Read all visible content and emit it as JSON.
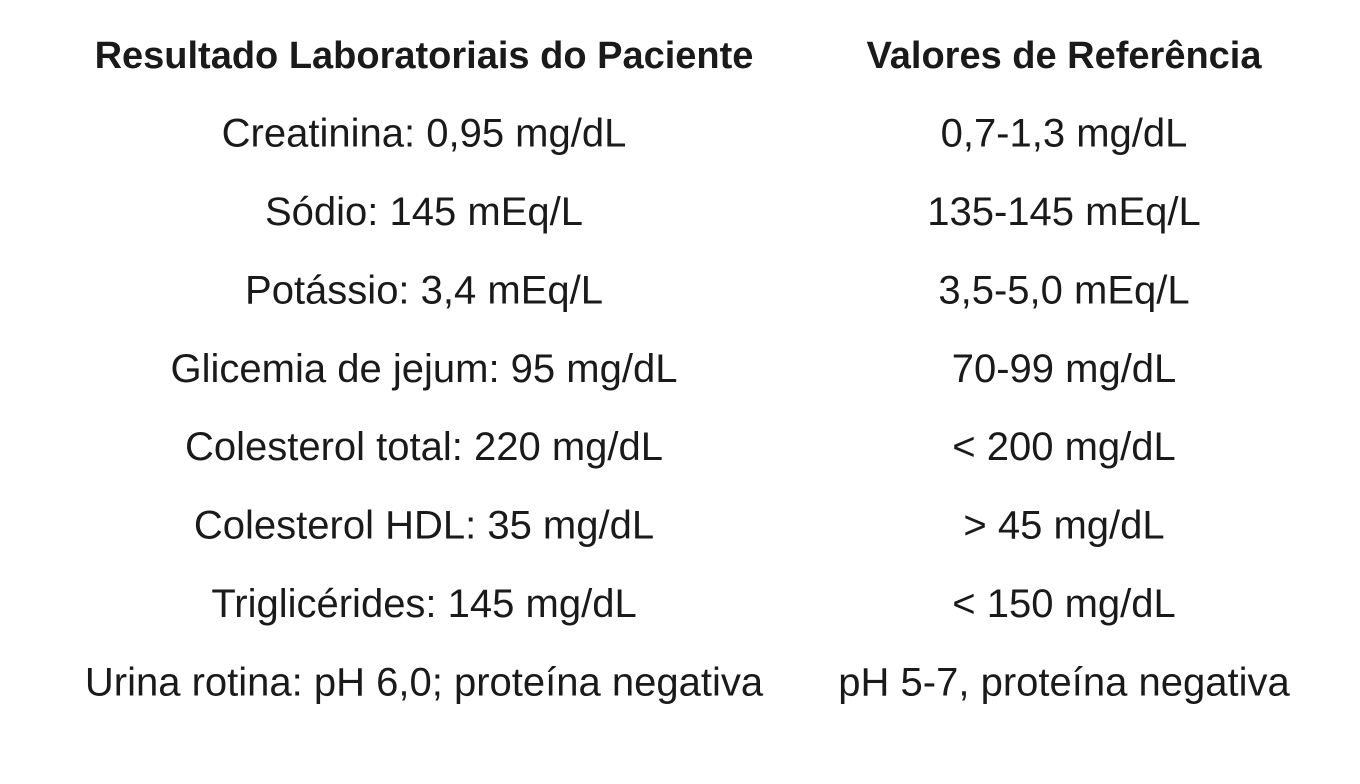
{
  "table": {
    "header": [
      "Resultado Laboratoriais do Paciente",
      "Valores de Referência"
    ],
    "rows": [
      [
        "Creatinina: 0,95 mg/dL",
        "0,7-1,3 mg/dL"
      ],
      [
        "Sódio: 145 mEq/L",
        "135-145 mEq/L"
      ],
      [
        "Potássio: 3,4 mEq/L",
        "3,5-5,0 mEq/L"
      ],
      [
        "Glicemia de jejum: 95 mg/dL",
        "70-99 mg/dL"
      ],
      [
        "Colesterol total: 220 mg/dL",
        "< 200 mg/dL"
      ],
      [
        "Colesterol HDL: 35 mg/dL",
        "> 45 mg/dL"
      ],
      [
        "Triglicérides: 145 mg/dL",
        "< 150 mg/dL"
      ],
      [
        "Urina rotina: pH 6,0; proteína negativa",
        "pH 5-7, proteína negativa"
      ]
    ]
  }
}
